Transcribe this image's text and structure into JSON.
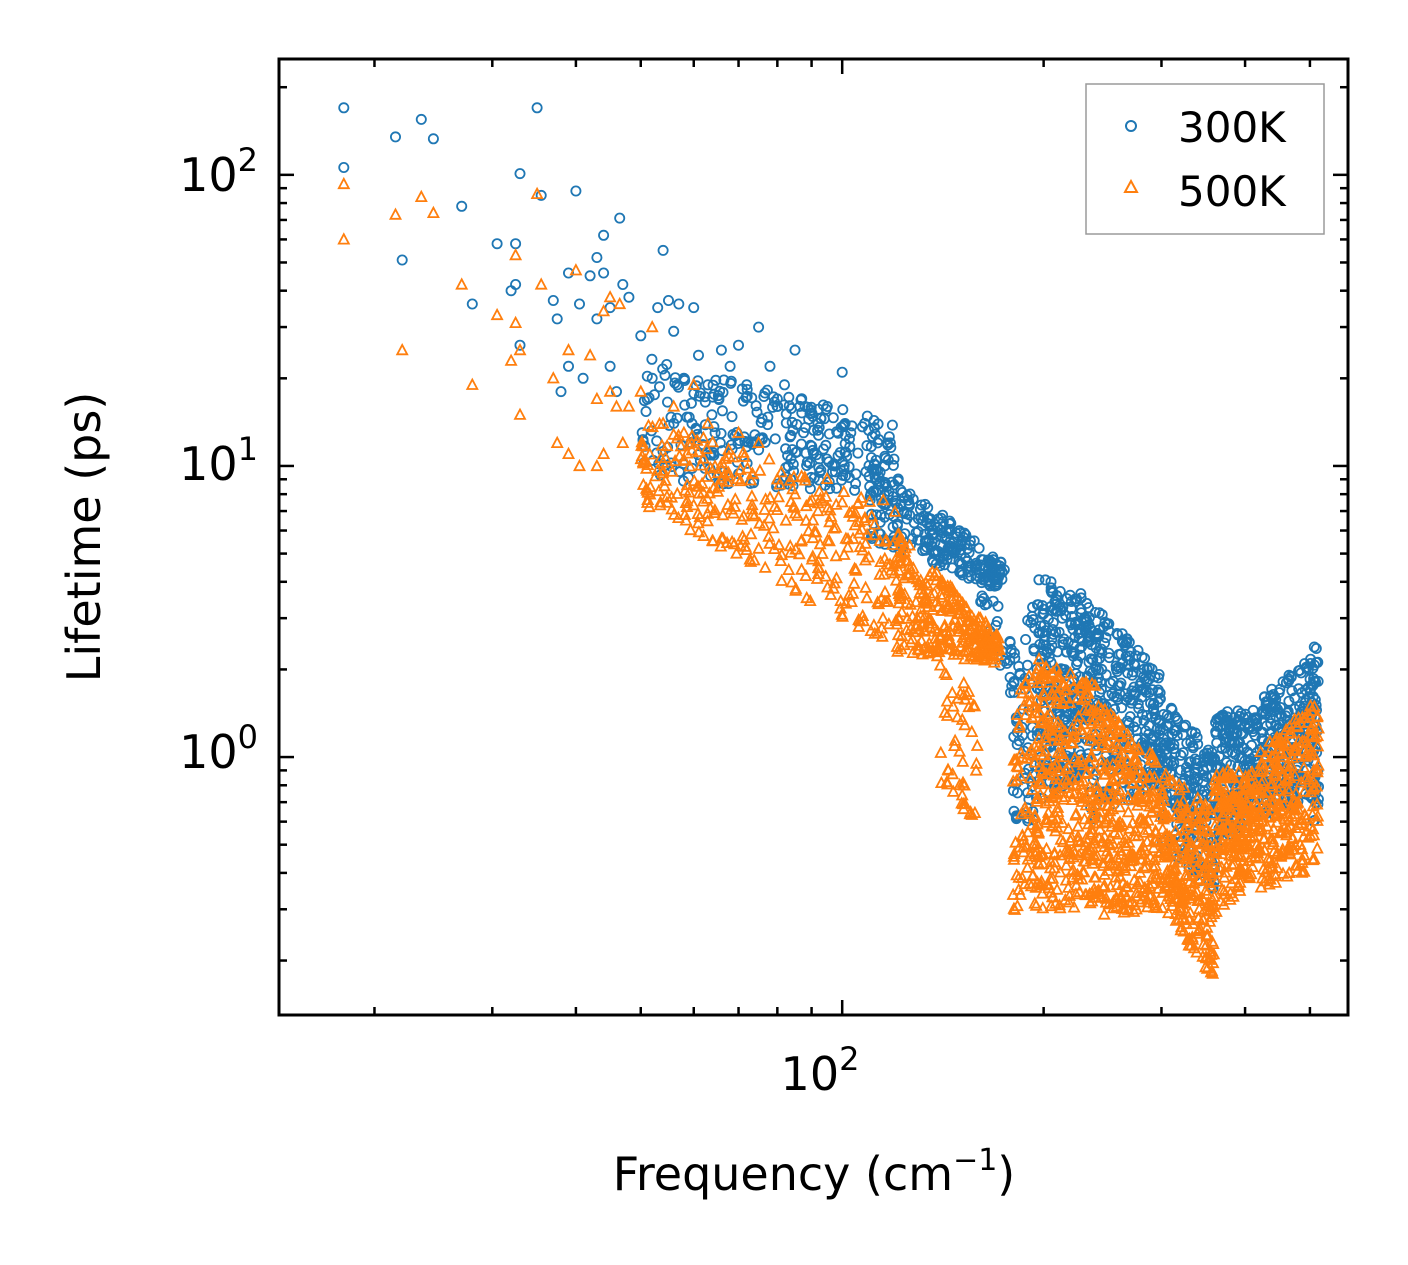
{
  "chart_data": {
    "type": "scatter",
    "title": "",
    "xlabel": "Frequency (cm",
    "xlabel_sup": "−1",
    "xlabel_suffix": ")",
    "ylabel": "Lifetime (ps)",
    "xscale": "log",
    "yscale": "log",
    "xlim": [
      14.4,
      570
    ],
    "ylim": [
      0.13,
      250
    ],
    "x_major_ticks": [
      {
        "value": 100,
        "base": "10",
        "exp": "2"
      }
    ],
    "y_major_ticks": [
      {
        "value": 1,
        "base": "10",
        "exp": "0"
      },
      {
        "value": 10,
        "base": "10",
        "exp": "1"
      },
      {
        "value": 100,
        "base": "10",
        "exp": "2"
      }
    ],
    "legend_position": "top-right",
    "series": [
      {
        "name": "300K",
        "color": "#1f77b4",
        "marker": "circle-open",
        "points": [
          [
            18,
            170
          ],
          [
            18,
            106
          ],
          [
            21.5,
            135
          ],
          [
            22,
            51
          ],
          [
            23.5,
            155
          ],
          [
            24.5,
            133
          ],
          [
            27,
            78
          ],
          [
            28,
            36
          ],
          [
            30.5,
            58
          ],
          [
            32,
            40
          ],
          [
            32.5,
            42
          ],
          [
            32.5,
            58
          ],
          [
            33,
            101
          ],
          [
            33,
            26
          ],
          [
            35,
            170
          ],
          [
            35.5,
            85
          ],
          [
            37,
            37
          ],
          [
            37.5,
            32
          ],
          [
            38,
            18
          ],
          [
            39,
            22
          ],
          [
            39,
            46
          ],
          [
            40,
            88
          ],
          [
            40.5,
            36
          ],
          [
            41,
            20
          ],
          [
            42,
            45
          ],
          [
            43,
            32
          ],
          [
            43,
            52
          ],
          [
            44,
            62
          ],
          [
            44,
            46
          ],
          [
            45,
            35
          ],
          [
            45,
            22
          ],
          [
            46,
            18
          ],
          [
            46.5,
            71
          ],
          [
            47,
            42
          ],
          [
            48,
            38
          ],
          [
            50,
            28
          ],
          [
            52,
            20
          ],
          [
            53,
            35
          ],
          [
            54,
            55
          ],
          [
            55,
            37
          ],
          [
            56,
            29
          ],
          [
            57,
            36
          ],
          [
            58,
            20
          ],
          [
            60,
            35
          ],
          [
            61,
            24
          ],
          [
            63,
            19
          ],
          [
            66,
            25
          ],
          [
            68,
            22
          ],
          [
            70,
            26
          ],
          [
            72,
            19
          ],
          [
            75,
            30
          ],
          [
            78,
            22
          ],
          [
            80,
            17
          ],
          [
            82,
            19
          ],
          [
            85,
            25
          ],
          [
            88,
            16
          ],
          [
            92,
            14
          ],
          [
            95,
            16
          ],
          [
            100,
            21
          ],
          [
            103,
            13
          ],
          [
            108,
            14
          ],
          [
            113,
            12
          ],
          [
            118,
            12
          ]
        ],
        "bands": [
          {
            "x": [
              50,
              120
            ],
            "ymin": [
              9,
              8
            ],
            "ymax": [
              24,
              14
            ],
            "n": 300
          },
          {
            "x": [
              110,
              175
            ],
            "ymin": [
              5.5,
              3.7
            ],
            "ymax": [
              11,
              4.6
            ],
            "n": 260
          },
          {
            "x": [
              160,
              180
            ],
            "ymin": [
              3.5,
              1.5
            ],
            "ymax": [
              5,
              2.6
            ],
            "n": 30
          },
          {
            "x": [
              180,
              195
            ],
            "ymin": [
              0.6,
              0.6
            ],
            "ymax": [
              2.4,
              3.6
            ],
            "n": 60
          },
          {
            "x": [
              195,
              235
            ],
            "ymin": [
              0.7,
              0.9
            ],
            "ymax": [
              4.2,
              3.6
            ],
            "n": 300
          },
          {
            "x": [
              235,
              300
            ],
            "ymin": [
              0.6,
              0.8
            ],
            "ymax": [
              3.5,
              1.9
            ],
            "n": 300
          },
          {
            "x": [
              300,
              360
            ],
            "ymin": [
              0.45,
              0.35
            ],
            "ymax": [
              1.6,
              1.05
            ],
            "n": 220
          },
          {
            "x": [
              360,
              420
            ],
            "ymin": [
              0.45,
              0.7
            ],
            "ymax": [
              1.45,
              1.45
            ],
            "n": 200
          },
          {
            "x": [
              420,
              510
            ],
            "ymin": [
              0.6,
              0.7
            ],
            "ymax": [
              1.6,
              2.25
            ],
            "n": 240
          },
          {
            "x": [
              505,
              515
            ],
            "ymin": [
              0.6,
              0.6
            ],
            "ymax": [
              2.4,
              2.4
            ],
            "n": 40
          }
        ]
      },
      {
        "name": "500K",
        "color": "#ff7f0e",
        "marker": "triangle-open",
        "points": [
          [
            18,
            93
          ],
          [
            18,
            60
          ],
          [
            21.5,
            73
          ],
          [
            22,
            25
          ],
          [
            23.5,
            84
          ],
          [
            24.5,
            74
          ],
          [
            27,
            42
          ],
          [
            28,
            19
          ],
          [
            30.5,
            33
          ],
          [
            32,
            23
          ],
          [
            32.5,
            31
          ],
          [
            32.5,
            53
          ],
          [
            33,
            25
          ],
          [
            33,
            15
          ],
          [
            35,
            86
          ],
          [
            35.5,
            42
          ],
          [
            37,
            20
          ],
          [
            37.5,
            12
          ],
          [
            39,
            11
          ],
          [
            39,
            25
          ],
          [
            40,
            47
          ],
          [
            40.5,
            10
          ],
          [
            42,
            24
          ],
          [
            43,
            17
          ],
          [
            43,
            10
          ],
          [
            44,
            34
          ],
          [
            44,
            11
          ],
          [
            45,
            38
          ],
          [
            45,
            18
          ],
          [
            46,
            16
          ],
          [
            46.5,
            36
          ],
          [
            47,
            12
          ],
          [
            48,
            16
          ],
          [
            50,
            18
          ],
          [
            52,
            30
          ],
          [
            54,
            14
          ],
          [
            56,
            16
          ],
          [
            58,
            13
          ],
          [
            60,
            19
          ],
          [
            63,
            14
          ],
          [
            66,
            9
          ],
          [
            70,
            13
          ],
          [
            75,
            12
          ],
          [
            80,
            9
          ],
          [
            85,
            8
          ],
          [
            92,
            7
          ],
          [
            100,
            7.5
          ],
          [
            108,
            6.5
          ],
          [
            116,
            5.5
          ],
          [
            122,
            5.5
          ]
        ],
        "bands": [
          {
            "x": [
              50,
              120
            ],
            "ymin": [
              7.5,
              2.3
            ],
            "ymax": [
              15,
              7.5
            ],
            "n": 320
          },
          {
            "x": [
              120,
              172
            ],
            "ymin": [
              2.3,
              2.1
            ],
            "ymax": [
              6,
              2.6
            ],
            "n": 300
          },
          {
            "x": [
              140,
              160
            ],
            "ymin": [
              0.7,
              0.6
            ],
            "ymax": [
              2.2,
              1.6
            ],
            "n": 50
          },
          {
            "x": [
              180,
              195
            ],
            "ymin": [
              0.3,
              0.28
            ],
            "ymax": [
              1.5,
              2.2
            ],
            "n": 80
          },
          {
            "x": [
              195,
              240
            ],
            "ymin": [
              0.3,
              0.3
            ],
            "ymax": [
              2.2,
              1.8
            ],
            "n": 320
          },
          {
            "x": [
              240,
              300
            ],
            "ymin": [
              0.28,
              0.3
            ],
            "ymax": [
              1.6,
              0.95
            ],
            "n": 300
          },
          {
            "x": [
              300,
              360
            ],
            "ymin": [
              0.3,
              0.17
            ],
            "ymax": [
              0.95,
              0.65
            ],
            "n": 260
          },
          {
            "x": [
              360,
              420
            ],
            "ymin": [
              0.28,
              0.4
            ],
            "ymax": [
              0.9,
              0.9
            ],
            "n": 220
          },
          {
            "x": [
              420,
              515
            ],
            "ymin": [
              0.35,
              0.42
            ],
            "ymax": [
              1.05,
              1.6
            ],
            "n": 260
          }
        ]
      }
    ]
  }
}
